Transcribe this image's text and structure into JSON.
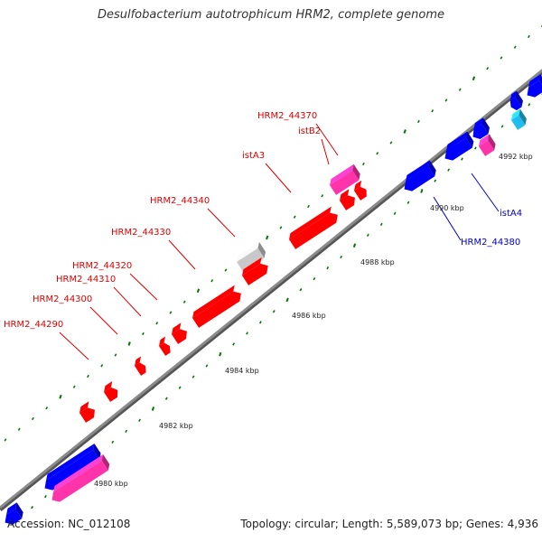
{
  "title": "Desulfobacterium autotrophicum HRM2, complete genome",
  "footer": {
    "accession": "Accession: NC_012108",
    "stats": "Topology: circular; Length: 5,589,073 bp; Genes: 4,936"
  },
  "colors": {
    "backbone": "#8a8a8a",
    "forward_gene": "#ff0000",
    "reverse_gene": "#0000ff",
    "forward_mobile": "#ff33aa",
    "reverse_mobile": "#ff33aa",
    "pseudo_gene": "#c8c8c8",
    "rna": "#22bbee",
    "ticks": "#007700",
    "forward_label": "#dd0000",
    "reverse_label": "#0000cc"
  },
  "ruler": [
    {
      "label": "4980 kbp"
    },
    {
      "label": "4982 kbp"
    },
    {
      "label": "4984 kbp"
    },
    {
      "label": "4986 kbp"
    },
    {
      "label": "4988 kbp"
    },
    {
      "label": "4990 kbp"
    },
    {
      "label": "4992 kbp"
    }
  ],
  "gene_labels": [
    {
      "name": "HRM2_44290",
      "strand": "forward"
    },
    {
      "name": "HRM2_44300",
      "strand": "forward"
    },
    {
      "name": "HRM2_44310",
      "strand": "forward"
    },
    {
      "name": "HRM2_44320",
      "strand": "forward"
    },
    {
      "name": "HRM2_44330",
      "strand": "forward"
    },
    {
      "name": "HRM2_44340",
      "strand": "forward"
    },
    {
      "name": "istA3",
      "strand": "forward"
    },
    {
      "name": "istB2",
      "strand": "forward"
    },
    {
      "name": "HRM2_44370",
      "strand": "forward"
    },
    {
      "name": "HRM2_44380",
      "strand": "reverse"
    },
    {
      "name": "istA4",
      "strand": "reverse"
    }
  ]
}
